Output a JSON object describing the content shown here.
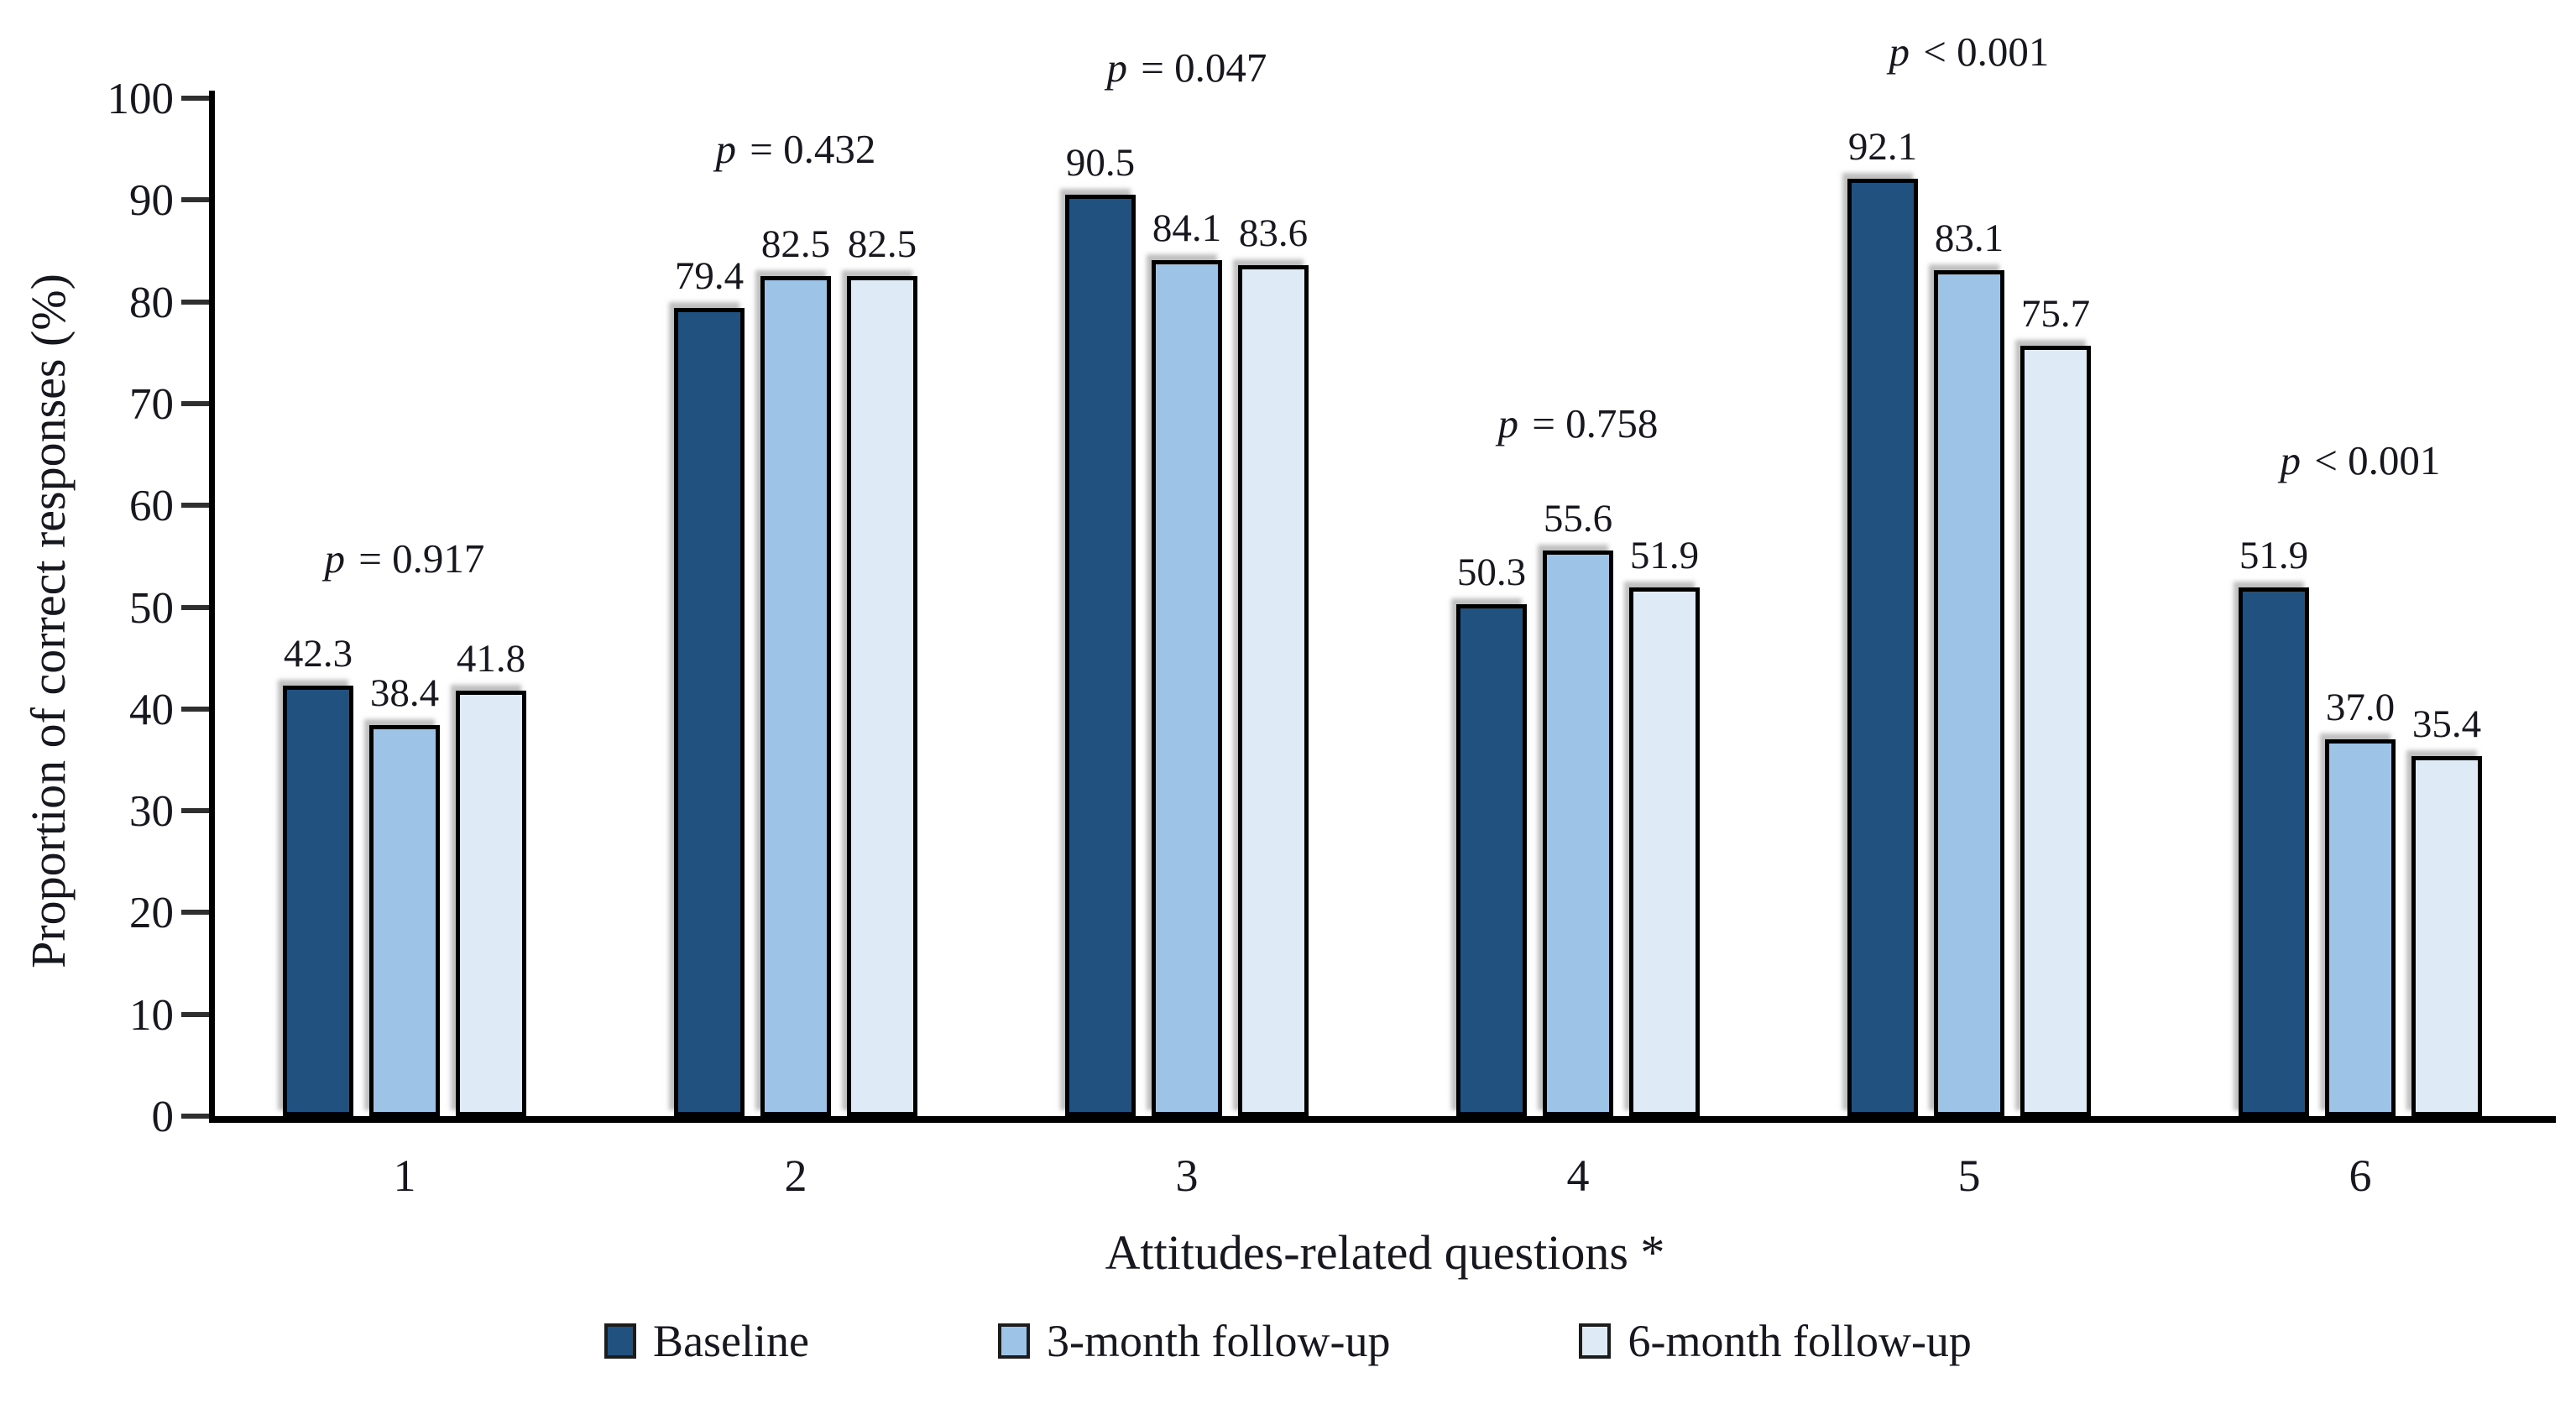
{
  "chart_data": {
    "type": "bar",
    "categories": [
      "1",
      "2",
      "3",
      "4",
      "5",
      "6"
    ],
    "series": [
      {
        "name": "Baseline",
        "color": "#21517E",
        "values": [
          42.3,
          79.4,
          90.5,
          50.3,
          92.1,
          51.9
        ]
      },
      {
        "name": "3-month follow-up",
        "color": "#9DC3E6",
        "values": [
          38.4,
          82.5,
          84.1,
          55.6,
          83.1,
          37.0
        ]
      },
      {
        "name": "6-month follow-up",
        "color": "#DEEBF7",
        "values": [
          41.8,
          82.5,
          83.6,
          51.9,
          75.7,
          35.4
        ]
      }
    ],
    "p_values": [
      "p = 0.917",
      "p = 0.432",
      "p = 0.047",
      "p = 0.758",
      "p < 0.001",
      "p < 0.001"
    ],
    "title": "",
    "xlabel": "Attitudes-related questions *",
    "ylabel": "Proportion of correct responses (%)",
    "ylim": [
      0,
      100
    ],
    "ytick_step": 10,
    "grid": false,
    "legend_position": "bottom",
    "bar_outline_color": "#000000",
    "axis_color": "#000000",
    "text_color": "#17171f",
    "value_label_decimals": 1
  }
}
